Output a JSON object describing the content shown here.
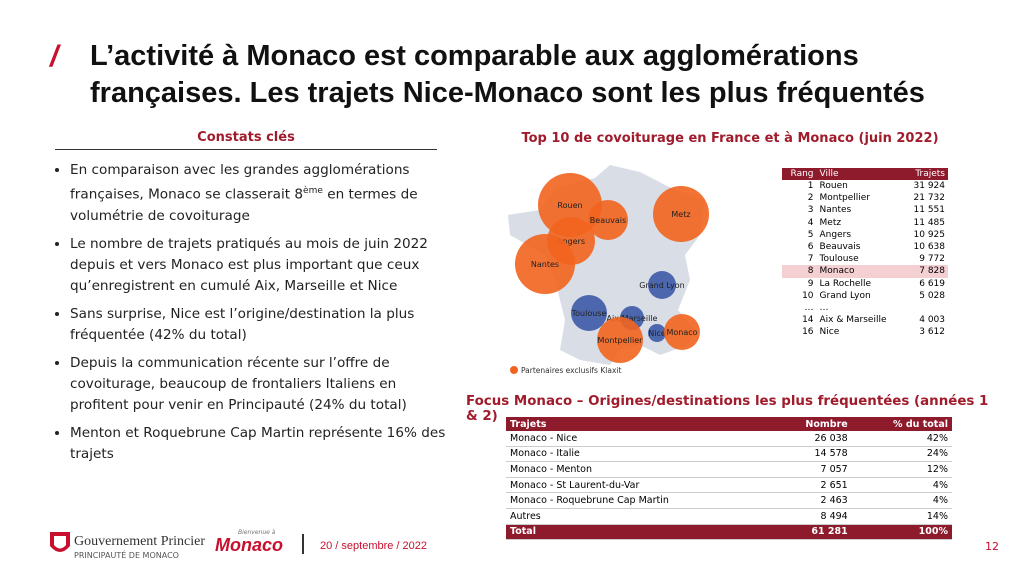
{
  "header": {
    "title": "L’activité à Monaco est comparable aux agglomérations françaises. Les trajets Nice-Monaco sont les plus fréquentés"
  },
  "constats": {
    "heading": "Constats clés",
    "bullets": [
      {
        "text": "En comparaison avec les grandes agglomérations françaises, Monaco se classerait 8",
        "sup": "ème",
        "rest": " en termes de volumétrie de covoiturage"
      },
      {
        "text": "Le nombre de trajets pratiqués au mois de juin 2022 depuis et vers Monaco est plus important que ceux qu’enregistrent en cumulé Aix, Marseille et Nice"
      },
      {
        "text": "Sans surprise, Nice est l’origine/destination la plus fréquentée (42% du total)"
      },
      {
        "text": "Depuis la communication récente sur l’offre de covoiturage, beaucoup de frontaliers Italiens en profitent pour venir en Principauté (24% du total)"
      },
      {
        "text": "Menton et Roquebrune Cap Martin représente 16% des trajets"
      }
    ]
  },
  "map": {
    "title": "Top 10 de covoiturage en France et à Monaco (juin 2022)",
    "legend": "Partenaires exclusifs Klaxit",
    "bubbles": [
      {
        "label": "Rouen",
        "color": "#f2641e"
      },
      {
        "label": "Beauvais",
        "color": "#f2641e"
      },
      {
        "label": "Metz",
        "color": "#f2641e"
      },
      {
        "label": "Angers",
        "color": "#f2641e"
      },
      {
        "label": "Nantes",
        "color": "#f2641e"
      },
      {
        "label": "Grand Lyon",
        "color": "#3d5aa8"
      },
      {
        "label": "Toulouse",
        "color": "#3d5aa8"
      },
      {
        "label": "Aix/Marseille",
        "color": "#3d5aa8"
      },
      {
        "label": "Nice",
        "color": "#3d5aa8"
      },
      {
        "label": "Monaco",
        "color": "#f2641e"
      },
      {
        "label": "Montpellier",
        "color": "#f2641e"
      }
    ]
  },
  "ranking": {
    "headers": [
      "Rang",
      "Ville",
      "Trajets"
    ],
    "rows": [
      [
        "1",
        "Rouen",
        "31 924"
      ],
      [
        "2",
        "Montpellier",
        "21 732"
      ],
      [
        "3",
        "Nantes",
        "11 551"
      ],
      [
        "4",
        "Metz",
        "11 485"
      ],
      [
        "5",
        "Angers",
        "10 925"
      ],
      [
        "6",
        "Beauvais",
        "10 638"
      ],
      [
        "7",
        "Toulouse",
        "9 772"
      ],
      [
        "8",
        "Monaco",
        "7 828"
      ],
      [
        "9",
        "La Rochelle",
        "6 619"
      ],
      [
        "10",
        "Grand Lyon",
        "5 028"
      ],
      [
        "…",
        "…",
        ""
      ],
      [
        "14",
        "Aix & Marseille",
        "4 003"
      ],
      [
        "16",
        "Nice",
        "3 612"
      ]
    ]
  },
  "focus": {
    "title": "Focus Monaco – Origines/destinations les plus fréquentées (années 1 & 2)",
    "headers": [
      "Trajets",
      "Nombre",
      "% du total"
    ],
    "rows": [
      [
        "Monaco - Nice",
        "26 038",
        "42%"
      ],
      [
        "Monaco - Italie",
        "14 578",
        "24%"
      ],
      [
        "Monaco - Menton",
        "7 057",
        "12%"
      ],
      [
        "Monaco - St Laurent-du-Var",
        "2 651",
        "4%"
      ],
      [
        "Monaco - Roquebrune Cap Martin",
        "2 463",
        "4%"
      ],
      [
        "Autres",
        "8 494",
        "14%"
      ]
    ],
    "total": [
      "Total",
      "61 281",
      "100%"
    ]
  },
  "footer": {
    "gov": "Gouvernement Princier",
    "principality": "PRINCIPAUTÉ DE MONACO",
    "brand_small": "Bienvenue à",
    "brand": "Monaco",
    "date": "20 / septembre / 2022",
    "page": "12"
  }
}
